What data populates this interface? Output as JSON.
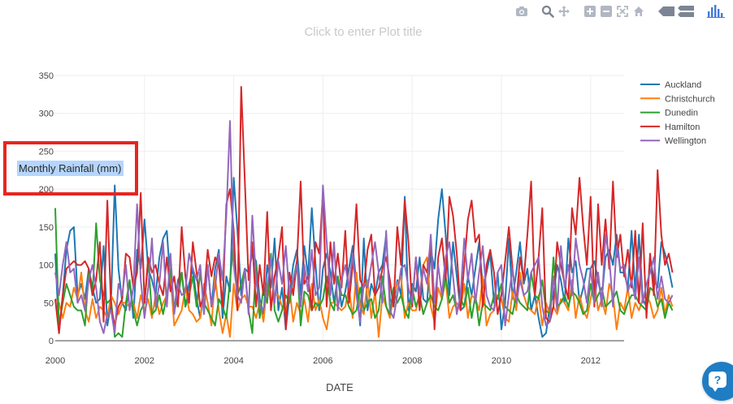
{
  "modebar": {
    "groups": [
      [
        "camera-icon"
      ],
      [
        "zoom-icon",
        "pan-icon"
      ],
      [
        "zoom-in-icon",
        "zoom-out-icon",
        "autoscale-icon",
        "home-icon"
      ],
      [
        "hover-closest-icon",
        "hover-compare-icon"
      ],
      [
        "plotly-logo-icon"
      ]
    ]
  },
  "plot_title_placeholder": "Click to enter Plot title",
  "help": {
    "glyph": "?"
  },
  "colors": {
    "Auckland": "#1f77b4",
    "Christchurch": "#ff7f0e",
    "Dunedin": "#2ca02c",
    "Hamilton": "#d62728",
    "Wellington": "#9467bd",
    "annotation_box": "#e8251f",
    "ylabel_highlight": "#b4d5fe"
  },
  "chart_data": {
    "type": "line",
    "xlabel": "DATE",
    "ylabel": "Monthly Rainfall (mm)",
    "ylabel_selected": true,
    "xlim": [
      2000,
      2012.75
    ],
    "ylim": [
      0,
      350
    ],
    "x_ticks": [
      "2000",
      "2002",
      "2004",
      "2006",
      "2008",
      "2010",
      "2012"
    ],
    "y_ticks": [
      "0",
      "50",
      "100",
      "150",
      "200",
      "250",
      "300",
      "350"
    ],
    "grid": true,
    "legend_position": "top-right",
    "x_step_months": 1,
    "x_start": 2000,
    "series": [
      {
        "name": "Auckland",
        "values": [
          115,
          10,
          60,
          120,
          145,
          150,
          60,
          75,
          55,
          95,
          70,
          50,
          55,
          125,
          20,
          50,
          205,
          95,
          50,
          40,
          80,
          30,
          120,
          95,
          160,
          95,
          80,
          60,
          110,
          135,
          145,
          75,
          40,
          80,
          90,
          45,
          75,
          95,
          55,
          30,
          65,
          100,
          45,
          95,
          120,
          30,
          85,
          65,
          215,
          145,
          60,
          95,
          90,
          115,
          105,
          55,
          35,
          100,
          70,
          135,
          40,
          70,
          15,
          60,
          100,
          120,
          60,
          125,
          85,
          175,
          100,
          40,
          95,
          115,
          90,
          50,
          85,
          45,
          65,
          95,
          125,
          75,
          20,
          135,
          40,
          75,
          60,
          90,
          100,
          140,
          55,
          45,
          80,
          60,
          190,
          40,
          75,
          65,
          110,
          55,
          50,
          120,
          95,
          160,
          200,
          140,
          60,
          130,
          85,
          40,
          45,
          85,
          60,
          95,
          130,
          70,
          90,
          115,
          50,
          90,
          15,
          50,
          135,
          55,
          90,
          130,
          75,
          95,
          40,
          60,
          30,
          5,
          10,
          45,
          60,
          100,
          80,
          50,
          135,
          90,
          105,
          50,
          70,
          95,
          95,
          105,
          80,
          55,
          110,
          120,
          100,
          140,
          90,
          90,
          70,
          145,
          65,
          140,
          55,
          45,
          110,
          80,
          70,
          130,
          115,
          95,
          70
        ]
      },
      {
        "name": "Christchurch",
        "values": [
          55,
          50,
          30,
          50,
          45,
          70,
          55,
          90,
          40,
          25,
          55,
          30,
          45,
          40,
          30,
          60,
          50,
          35,
          50,
          50,
          45,
          50,
          30,
          60,
          40,
          55,
          30,
          60,
          35,
          50,
          60,
          85,
          20,
          30,
          40,
          70,
          40,
          35,
          25,
          30,
          75,
          50,
          20,
          85,
          40,
          10,
          35,
          5,
          75,
          40,
          55,
          60,
          45,
          45,
          30,
          50,
          25,
          75,
          50,
          60,
          60,
          45,
          35,
          70,
          25,
          50,
          35,
          55,
          25,
          75,
          40,
          55,
          30,
          15,
          50,
          50,
          45,
          40,
          45,
          70,
          30,
          90,
          45,
          35,
          80,
          30,
          65,
          5,
          60,
          45,
          30,
          60,
          75,
          85,
          30,
          50,
          40,
          40,
          60,
          100,
          110,
          45,
          25,
          70,
          55,
          80,
          30,
          45,
          50,
          40,
          75,
          30,
          60,
          55,
          40,
          85,
          20,
          35,
          40,
          60,
          55,
          30,
          25,
          65,
          40,
          90,
          60,
          45,
          40,
          35,
          60,
          20,
          50,
          35,
          45,
          35,
          55,
          50,
          40,
          80,
          30,
          60,
          40,
          30,
          55,
          80,
          40,
          55,
          35,
          75,
          60,
          15,
          50,
          40,
          70,
          30,
          50,
          40,
          55,
          60,
          50,
          30,
          40,
          70,
          35,
          60,
          45
        ]
      },
      {
        "name": "Dunedin",
        "values": [
          175,
          20,
          50,
          75,
          60,
          45,
          40,
          40,
          20,
          90,
          60,
          155,
          80,
          60,
          50,
          55,
          5,
          10,
          5,
          50,
          80,
          40,
          20,
          40,
          50,
          105,
          35,
          40,
          60,
          35,
          60,
          95,
          40,
          55,
          90,
          45,
          60,
          85,
          45,
          90,
          50,
          40,
          30,
          20,
          55,
          45,
          30,
          80,
          130,
          60,
          75,
          95,
          40,
          10,
          100,
          30,
          70,
          50,
          115,
          40,
          25,
          40,
          60,
          50,
          80,
          105,
          20,
          65,
          60,
          40,
          50,
          45,
          55,
          85,
          50,
          40,
          85,
          60,
          60,
          45,
          35,
          40,
          70,
          40,
          50,
          55,
          30,
          40,
          85,
          45,
          35,
          70,
          50,
          60,
          40,
          30,
          70,
          45,
          60,
          35,
          50,
          60,
          45,
          40,
          55,
          85,
          50,
          60,
          40,
          55,
          45,
          70,
          30,
          60,
          20,
          50,
          45,
          40,
          60,
          55,
          75,
          45,
          40,
          35,
          60,
          50,
          45,
          40,
          90,
          60,
          55,
          80,
          40,
          35,
          110,
          45,
          50,
          60,
          45,
          65,
          60,
          50,
          35,
          40,
          75,
          50,
          60,
          70,
          45,
          50,
          55,
          65,
          40,
          35,
          50,
          60,
          60,
          50,
          45,
          40,
          70,
          65,
          45,
          55,
          30,
          50,
          40
        ]
      },
      {
        "name": "Hamilton",
        "values": [
          55,
          10,
          60,
          95,
          100,
          105,
          100,
          100,
          105,
          95,
          60,
          80,
          130,
          25,
          185,
          45,
          20,
          45,
          55,
          115,
          110,
          70,
          90,
          195,
          50,
          110,
          90,
          100,
          75,
          60,
          110,
          65,
          85,
          45,
          150,
          85,
          50,
          130,
          90,
          45,
          60,
          120,
          85,
          110,
          100,
          45,
          180,
          200,
          145,
          40,
          335,
          210,
          80,
          130,
          45,
          100,
          60,
          170,
          40,
          85,
          110,
          150,
          15,
          90,
          60,
          105,
          210,
          75,
          85,
          40,
          130,
          115,
          195,
          45,
          130,
          75,
          115,
          70,
          145,
          50,
          100,
          180,
          80,
          70,
          120,
          140,
          60,
          70,
          95,
          110,
          80,
          45,
          150,
          100,
          185,
          130,
          45,
          110,
          40,
          100,
          90,
          130,
          15,
          110,
          135,
          80,
          190,
          165,
          115,
          40,
          100,
          160,
          185,
          130,
          140,
          45,
          100,
          120,
          90,
          35,
          60,
          105,
          150,
          95,
          50,
          110,
          80,
          140,
          210,
          60,
          110,
          175,
          30,
          25,
          45,
          130,
          100,
          75,
          55,
          175,
          140,
          215,
          150,
          100,
          190,
          45,
          180,
          100,
          160,
          95,
          210,
          110,
          140,
          85,
          120,
          70,
          145,
          50,
          155,
          30,
          115,
          60,
          225,
          140,
          100,
          115,
          90
        ]
      },
      {
        "name": "Wellington",
        "values": [
          90,
          60,
          100,
          130,
          90,
          95,
          50,
          60,
          40,
          80,
          100,
          70,
          25,
          10,
          35,
          40,
          10,
          75,
          60,
          100,
          40,
          70,
          180,
          80,
          30,
          70,
          135,
          45,
          75,
          130,
          45,
          115,
          35,
          75,
          60,
          65,
          115,
          95,
          80,
          100,
          35,
          100,
          45,
          70,
          115,
          80,
          165,
          290,
          100,
          60,
          50,
          95,
          35,
          165,
          80,
          45,
          40,
          70,
          110,
          50,
          105,
          75,
          125,
          60,
          80,
          100,
          45,
          100,
          65,
          120,
          60,
          70,
          205,
          130,
          60,
          130,
          40,
          80,
          100,
          70,
          115,
          60,
          25,
          75,
          70,
          100,
          130,
          90,
          50,
          145,
          40,
          30,
          60,
          95,
          100,
          70,
          50,
          110,
          60,
          95,
          75,
          140,
          50,
          100,
          60,
          110,
          130,
          85,
          35,
          60,
          135,
          80,
          115,
          50,
          90,
          125,
          60,
          45,
          40,
          90,
          100,
          20,
          60,
          95,
          50,
          80,
          60,
          65,
          90,
          100,
          110,
          45,
          20,
          25,
          85,
          40,
          125,
          70,
          100,
          60,
          135,
          100,
          80,
          50,
          95,
          50,
          90,
          45,
          140,
          110,
          45,
          125,
          95,
          100,
          65,
          80,
          55,
          110,
          50,
          75,
          90,
          110,
          55,
          85,
          55,
          50,
          60
        ]
      }
    ]
  }
}
